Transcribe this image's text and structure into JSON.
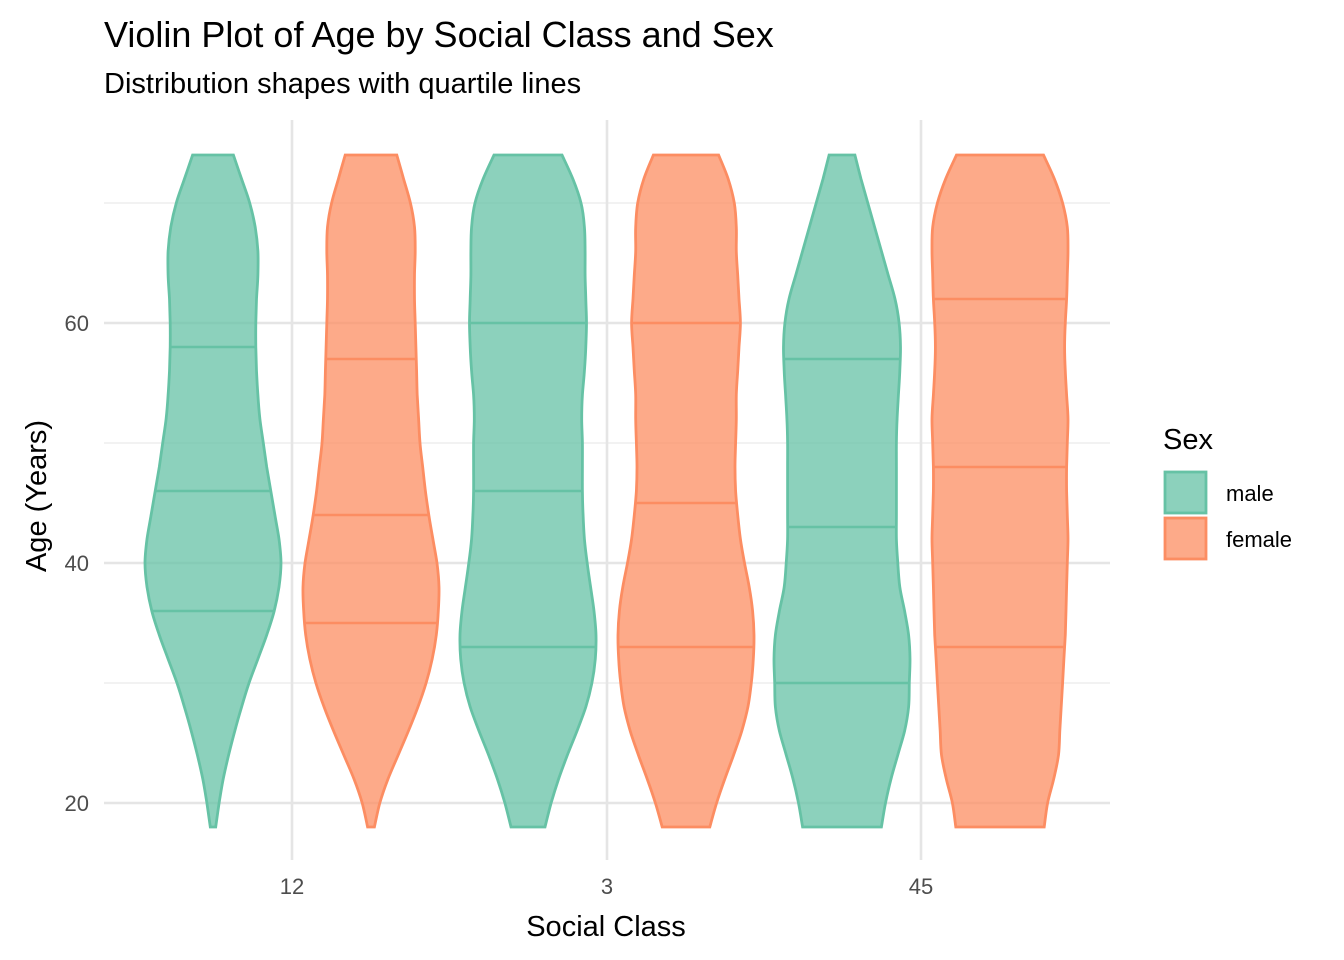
{
  "chart_data": {
    "type": "violin",
    "title": "Violin Plot of Age by Social Class and Sex",
    "subtitle": "Distribution shapes with quartile lines",
    "xlabel": "Social Class",
    "ylabel": "Age (Years)",
    "categories": [
      "12",
      "3",
      "45"
    ],
    "y_ticks": [
      20,
      40,
      60
    ],
    "ylim": [
      18,
      74
    ],
    "grid": true,
    "legend": {
      "title": "Sex",
      "position": "right",
      "entries": [
        "male",
        "female"
      ]
    },
    "series": [
      {
        "name": "male",
        "color": "#66c2a5",
        "fill_opacity": 0.75,
        "violins": [
          {
            "category": "12",
            "quartiles": [
              36,
              46,
              58
            ],
            "profile": [
              [
                18,
                0.04
              ],
              [
                20,
                0.09
              ],
              [
                22,
                0.15
              ],
              [
                24,
                0.23
              ],
              [
                26,
                0.32
              ],
              [
                28,
                0.42
              ],
              [
                30,
                0.53
              ],
              [
                32,
                0.66
              ],
              [
                34,
                0.79
              ],
              [
                36,
                0.9
              ],
              [
                38,
                0.97
              ],
              [
                40,
                1.0
              ],
              [
                42,
                0.97
              ],
              [
                44,
                0.91
              ],
              [
                46,
                0.85
              ],
              [
                48,
                0.79
              ],
              [
                50,
                0.74
              ],
              [
                52,
                0.69
              ],
              [
                54,
                0.66
              ],
              [
                56,
                0.64
              ],
              [
                58,
                0.63
              ],
              [
                60,
                0.63
              ],
              [
                62,
                0.64
              ],
              [
                64,
                0.66
              ],
              [
                66,
                0.66
              ],
              [
                68,
                0.62
              ],
              [
                70,
                0.54
              ],
              [
                72,
                0.42
              ],
              [
                74,
                0.3
              ]
            ]
          },
          {
            "category": "3",
            "quartiles": [
              33,
              46,
              60
            ],
            "profile": [
              [
                18,
                0.25
              ],
              [
                20,
                0.34
              ],
              [
                22,
                0.45
              ],
              [
                24,
                0.58
              ],
              [
                26,
                0.72
              ],
              [
                28,
                0.85
              ],
              [
                30,
                0.94
              ],
              [
                32,
                0.99
              ],
              [
                34,
                1.0
              ],
              [
                36,
                0.97
              ],
              [
                38,
                0.92
              ],
              [
                40,
                0.87
              ],
              [
                42,
                0.83
              ],
              [
                44,
                0.81
              ],
              [
                46,
                0.8
              ],
              [
                48,
                0.8
              ],
              [
                50,
                0.8
              ],
              [
                52,
                0.79
              ],
              [
                54,
                0.8
              ],
              [
                56,
                0.83
              ],
              [
                58,
                0.85
              ],
              [
                60,
                0.86
              ],
              [
                62,
                0.85
              ],
              [
                64,
                0.84
              ],
              [
                66,
                0.84
              ],
              [
                68,
                0.83
              ],
              [
                70,
                0.78
              ],
              [
                72,
                0.66
              ],
              [
                74,
                0.5
              ]
            ]
          },
          {
            "category": "45",
            "quartiles": [
              30,
              43,
              57
            ],
            "profile": [
              [
                18,
                0.58
              ],
              [
                20,
                0.64
              ],
              [
                22,
                0.72
              ],
              [
                24,
                0.82
              ],
              [
                26,
                0.92
              ],
              [
                28,
                0.98
              ],
              [
                30,
                0.99
              ],
              [
                32,
                1.0
              ],
              [
                34,
                0.98
              ],
              [
                36,
                0.92
              ],
              [
                38,
                0.85
              ],
              [
                40,
                0.82
              ],
              [
                42,
                0.8
              ],
              [
                44,
                0.8
              ],
              [
                46,
                0.8
              ],
              [
                48,
                0.8
              ],
              [
                50,
                0.8
              ],
              [
                52,
                0.81
              ],
              [
                54,
                0.83
              ],
              [
                56,
                0.85
              ],
              [
                58,
                0.86
              ],
              [
                60,
                0.84
              ],
              [
                62,
                0.78
              ],
              [
                64,
                0.68
              ],
              [
                66,
                0.58
              ],
              [
                68,
                0.48
              ],
              [
                70,
                0.38
              ],
              [
                72,
                0.28
              ],
              [
                74,
                0.19
              ]
            ]
          }
        ]
      },
      {
        "name": "female",
        "color": "#fc8d62",
        "fill_opacity": 0.75,
        "violins": [
          {
            "category": "12",
            "quartiles": [
              35,
              44,
              57
            ],
            "profile": [
              [
                18,
                0.05
              ],
              [
                20,
                0.13
              ],
              [
                22,
                0.25
              ],
              [
                24,
                0.4
              ],
              [
                26,
                0.55
              ],
              [
                28,
                0.69
              ],
              [
                30,
                0.81
              ],
              [
                32,
                0.9
              ],
              [
                34,
                0.96
              ],
              [
                36,
                0.99
              ],
              [
                38,
                1.0
              ],
              [
                40,
                0.97
              ],
              [
                42,
                0.91
              ],
              [
                44,
                0.85
              ],
              [
                46,
                0.8
              ],
              [
                48,
                0.76
              ],
              [
                50,
                0.72
              ],
              [
                52,
                0.7
              ],
              [
                54,
                0.68
              ],
              [
                56,
                0.67
              ],
              [
                58,
                0.66
              ],
              [
                60,
                0.65
              ],
              [
                62,
                0.64
              ],
              [
                64,
                0.64
              ],
              [
                66,
                0.65
              ],
              [
                68,
                0.64
              ],
              [
                70,
                0.58
              ],
              [
                72,
                0.48
              ],
              [
                74,
                0.38
              ]
            ]
          },
          {
            "category": "3",
            "quartiles": [
              33,
              45,
              60
            ],
            "profile": [
              [
                18,
                0.35
              ],
              [
                20,
                0.45
              ],
              [
                22,
                0.57
              ],
              [
                24,
                0.7
              ],
              [
                26,
                0.82
              ],
              [
                28,
                0.91
              ],
              [
                30,
                0.96
              ],
              [
                32,
                0.99
              ],
              [
                34,
                1.0
              ],
              [
                36,
                0.98
              ],
              [
                38,
                0.93
              ],
              [
                40,
                0.86
              ],
              [
                42,
                0.8
              ],
              [
                44,
                0.76
              ],
              [
                46,
                0.73
              ],
              [
                48,
                0.72
              ],
              [
                50,
                0.73
              ],
              [
                52,
                0.74
              ],
              [
                54,
                0.74
              ],
              [
                56,
                0.76
              ],
              [
                58,
                0.78
              ],
              [
                60,
                0.8
              ],
              [
                62,
                0.78
              ],
              [
                64,
                0.76
              ],
              [
                66,
                0.74
              ],
              [
                68,
                0.74
              ],
              [
                70,
                0.71
              ],
              [
                72,
                0.62
              ],
              [
                74,
                0.48
              ]
            ]
          },
          {
            "category": "45",
            "quartiles": [
              33,
              48,
              62
            ],
            "profile": [
              [
                18,
                0.65
              ],
              [
                20,
                0.7
              ],
              [
                22,
                0.79
              ],
              [
                24,
                0.86
              ],
              [
                26,
                0.88
              ],
              [
                28,
                0.9
              ],
              [
                30,
                0.92
              ],
              [
                32,
                0.94
              ],
              [
                34,
                0.96
              ],
              [
                36,
                0.97
              ],
              [
                38,
                0.98
              ],
              [
                40,
                0.99
              ],
              [
                42,
                1.0
              ],
              [
                44,
                0.99
              ],
              [
                46,
                0.98
              ],
              [
                48,
                0.98
              ],
              [
                50,
                0.99
              ],
              [
                52,
                1.0
              ],
              [
                54,
                0.98
              ],
              [
                56,
                0.96
              ],
              [
                58,
                0.95
              ],
              [
                60,
                0.96
              ],
              [
                62,
                0.98
              ],
              [
                64,
                0.99
              ],
              [
                66,
                1.0
              ],
              [
                68,
                0.99
              ],
              [
                70,
                0.92
              ],
              [
                72,
                0.8
              ],
              [
                74,
                0.64
              ]
            ]
          }
        ]
      }
    ]
  }
}
